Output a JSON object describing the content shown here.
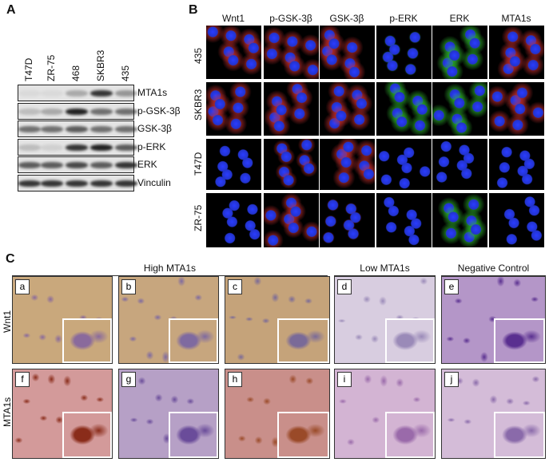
{
  "panels": {
    "A": {
      "label": "A",
      "lanes": [
        "T47D",
        "ZR-75",
        "468",
        "SKBR3",
        "435"
      ],
      "bands": [
        "MTA1s",
        "p-GSK-3β",
        "GSK-3β",
        "p-ERK",
        "ERK",
        "Vinculin"
      ]
    },
    "B": {
      "label": "B",
      "columns": [
        "Wnt1",
        "p-GSK-3β",
        "GSK-3β",
        "p-ERK",
        "ERK",
        "MTA1s"
      ],
      "rows": [
        "435",
        "SKBR3",
        "T47D",
        "ZR-75"
      ]
    },
    "C": {
      "label": "C",
      "groups": [
        "High MTA1s",
        "Low  MTA1s",
        "Negative Control"
      ],
      "rows": [
        "Wnt1",
        "MTA1s"
      ],
      "tiles": [
        [
          "a",
          "b",
          "c",
          "d",
          "e"
        ],
        [
          "f",
          "g",
          "h",
          "i",
          "j"
        ]
      ]
    }
  }
}
